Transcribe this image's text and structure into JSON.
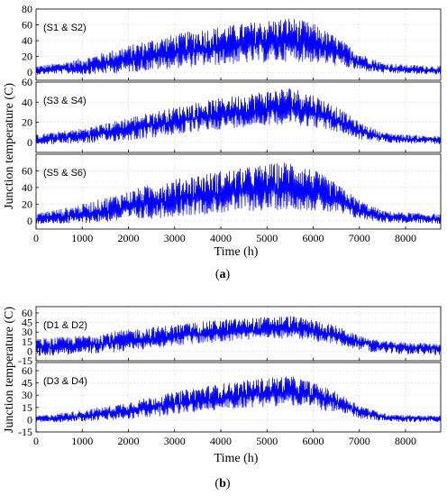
{
  "figure_a": {
    "caption_open": "(",
    "caption_letter": "a",
    "caption_close": ")",
    "ylabel": "Junction temperature (C)",
    "xlabel": "Time (h)",
    "x_ticks": [
      "0",
      "1000",
      "2000",
      "3000",
      "4000",
      "5000",
      "6000",
      "7000",
      "8000"
    ]
  },
  "figure_b": {
    "caption_open": "(",
    "caption_letter": "b",
    "caption_close": ")",
    "ylabel": "Junction temperature (C)",
    "xlabel": "Time (h)",
    "x_ticks": [
      "0",
      "1000",
      "2000",
      "3000",
      "4000",
      "5000",
      "6000",
      "7000",
      "8000"
    ]
  },
  "line_color": "#0000ff",
  "chart_data": [
    {
      "type": "line",
      "label": "(S1 & S2)",
      "xlim": [
        0,
        8760
      ],
      "ylim": [
        -10,
        80
      ],
      "y_ticks": [
        "0",
        "20",
        "40",
        "60",
        "80"
      ],
      "y_tick_values": [
        0,
        20,
        40,
        60,
        80
      ],
      "grid": true,
      "x": [
        0,
        500,
        1000,
        1500,
        2000,
        2500,
        3000,
        3500,
        4000,
        4500,
        5000,
        5500,
        6000,
        6500,
        7000,
        7500,
        8000,
        8760
      ],
      "series": [
        {
          "values": [
            2,
            4,
            6,
            10,
            15,
            20,
            24,
            28,
            30,
            34,
            36,
            38,
            34,
            25,
            12,
            5,
            3,
            2
          ]
        },
        {
          "values": [
            8,
            12,
            18,
            26,
            34,
            42,
            48,
            54,
            58,
            62,
            66,
            70,
            62,
            45,
            25,
            12,
            10,
            8
          ]
        },
        {
          "values": [
            -3,
            -2,
            -3,
            -2,
            0,
            2,
            5,
            7,
            9,
            11,
            12,
            14,
            12,
            8,
            2,
            -1,
            -2,
            -3
          ]
        }
      ]
    },
    {
      "type": "line",
      "label": "(S3 & S4)",
      "xlim": [
        0,
        8760
      ],
      "ylim": [
        -10,
        60
      ],
      "y_ticks": [
        "0",
        "20",
        "40",
        "60"
      ],
      "y_tick_values": [
        0,
        20,
        40,
        60
      ],
      "grid": true,
      "x": [
        0,
        500,
        1000,
        1500,
        2000,
        2500,
        3000,
        3500,
        4000,
        4500,
        5000,
        5500,
        6000,
        6500,
        7000,
        7500,
        8000,
        8760
      ],
      "series": [
        {
          "values": [
            2,
            4,
            6,
            9,
            13,
            17,
            21,
            24,
            27,
            30,
            32,
            34,
            30,
            22,
            11,
            5,
            3,
            2
          ]
        },
        {
          "values": [
            8,
            11,
            14,
            19,
            25,
            30,
            35,
            40,
            44,
            48,
            52,
            55,
            48,
            36,
            20,
            10,
            8,
            6
          ]
        },
        {
          "values": [
            -2,
            -2,
            -1,
            0,
            2,
            4,
            7,
            10,
            13,
            15,
            17,
            18,
            15,
            10,
            3,
            0,
            -1,
            -2
          ]
        }
      ]
    },
    {
      "type": "line",
      "label": "(S5 & S6)",
      "xlim": [
        0,
        8760
      ],
      "ylim": [
        -10,
        80
      ],
      "y_ticks": [
        "0",
        "20",
        "40",
        "60"
      ],
      "y_tick_values": [
        0,
        20,
        40,
        60
      ],
      "grid": true,
      "x": [
        0,
        500,
        1000,
        1500,
        2000,
        2500,
        3000,
        3500,
        4000,
        4500,
        5000,
        5500,
        6000,
        6500,
        7000,
        7500,
        8000,
        8760
      ],
      "series": [
        {
          "values": [
            2,
            4,
            7,
            11,
            16,
            21,
            25,
            28,
            31,
            34,
            36,
            38,
            34,
            25,
            12,
            5,
            3,
            2
          ]
        },
        {
          "values": [
            10,
            14,
            20,
            28,
            36,
            44,
            50,
            56,
            60,
            64,
            68,
            72,
            62,
            45,
            25,
            12,
            10,
            8
          ]
        },
        {
          "values": [
            -4,
            -4,
            -3,
            -2,
            0,
            2,
            5,
            7,
            9,
            11,
            12,
            14,
            12,
            8,
            2,
            -2,
            -3,
            -4
          ]
        }
      ]
    },
    {
      "type": "line",
      "label": "(D1 & D2)",
      "xlim": [
        0,
        8760
      ],
      "ylim": [
        -15,
        70
      ],
      "y_ticks": [
        "-15",
        "0",
        "15",
        "30",
        "45",
        "60"
      ],
      "y_tick_values": [
        -15,
        0,
        15,
        30,
        45,
        60
      ],
      "grid": true,
      "x": [
        0,
        500,
        1000,
        1500,
        2000,
        2500,
        3000,
        3500,
        4000,
        4500,
        5000,
        5500,
        6000,
        6500,
        7000,
        7500,
        8000,
        8760
      ],
      "series": [
        {
          "values": [
            5,
            6,
            9,
            12,
            15,
            19,
            23,
            26,
            29,
            31,
            33,
            35,
            31,
            24,
            14,
            8,
            6,
            5
          ]
        },
        {
          "values": [
            20,
            22,
            25,
            30,
            34,
            38,
            42,
            46,
            50,
            52,
            54,
            56,
            50,
            40,
            24,
            16,
            14,
            12
          ]
        },
        {
          "values": [
            -8,
            -6,
            -5,
            -3,
            0,
            4,
            8,
            11,
            14,
            17,
            19,
            20,
            16,
            10,
            2,
            -4,
            -5,
            -6
          ]
        }
      ]
    },
    {
      "type": "line",
      "label": "(D3 & D4)",
      "xlim": [
        0,
        8760
      ],
      "ylim": [
        -15,
        70
      ],
      "y_ticks": [
        "-15",
        "0",
        "15",
        "30",
        "45",
        "60"
      ],
      "y_tick_values": [
        -15,
        0,
        15,
        30,
        45,
        60
      ],
      "grid": true,
      "x": [
        0,
        500,
        1000,
        1500,
        2000,
        2500,
        3000,
        3500,
        4000,
        4500,
        5000,
        5500,
        6000,
        6500,
        7000,
        7500,
        8000,
        8760
      ],
      "series": [
        {
          "values": [
            1,
            2,
            4,
            7,
            11,
            15,
            19,
            23,
            26,
            29,
            31,
            33,
            29,
            21,
            10,
            3,
            2,
            1
          ]
        },
        {
          "values": [
            5,
            8,
            12,
            16,
            22,
            28,
            34,
            40,
            44,
            48,
            52,
            54,
            46,
            34,
            18,
            8,
            6,
            5
          ]
        },
        {
          "values": [
            -3,
            -3,
            -2,
            -1,
            0,
            3,
            6,
            9,
            12,
            14,
            16,
            17,
            14,
            8,
            1,
            -2,
            -3,
            -3
          ]
        }
      ]
    }
  ]
}
